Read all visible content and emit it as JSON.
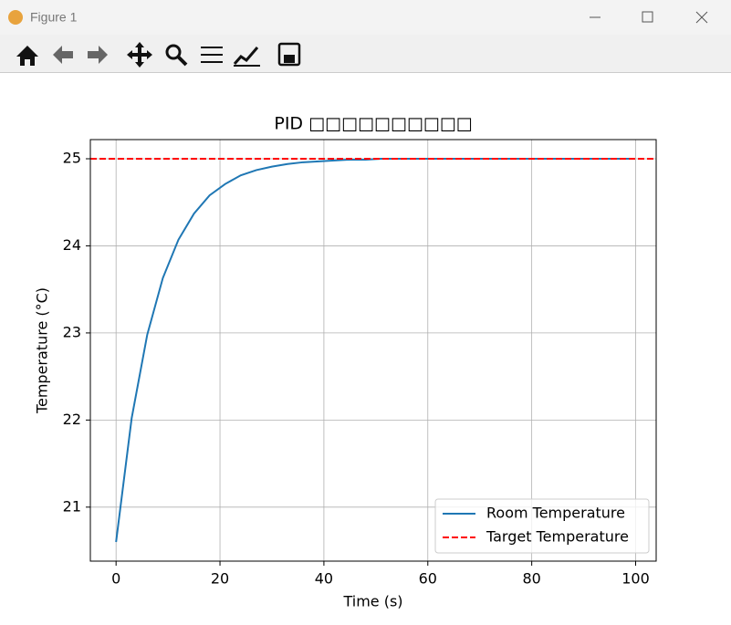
{
  "window": {
    "title": "Figure 1"
  },
  "chart_data": {
    "type": "line",
    "title": "PID □□□□□□□□□□",
    "x_label": "Time (s)",
    "y_label": "Temperature (°C)",
    "x": [
      0,
      3,
      6,
      9,
      12,
      15,
      18,
      21,
      24,
      27,
      30,
      33,
      36,
      39,
      42,
      45,
      48,
      51,
      54,
      57,
      60,
      63,
      66,
      69,
      72,
      75,
      78,
      81,
      84,
      87,
      90,
      93,
      96,
      99
    ],
    "series": [
      {
        "name": "Room Temperature",
        "color": "#1f77b4",
        "values": [
          20.6,
          22.02,
          22.98,
          23.63,
          24.07,
          24.37,
          24.58,
          24.71,
          24.81,
          24.87,
          24.91,
          24.94,
          24.96,
          24.97,
          24.98,
          24.99,
          24.99,
          25,
          25,
          25,
          25,
          25,
          25,
          25,
          25,
          25,
          25,
          25,
          25,
          25,
          25,
          25,
          25,
          25
        ]
      }
    ],
    "target": {
      "name": "Target Temperature",
      "color": "#ff0000",
      "value": 25
    },
    "xlim": [
      -4.95,
      103.95
    ],
    "xticks": [
      0,
      20,
      40,
      60,
      80,
      100
    ],
    "ylim": [
      20.38,
      25.22
    ],
    "yticks": [
      21,
      22,
      23,
      24,
      25
    ],
    "grid": true,
    "legend": "lower right"
  }
}
